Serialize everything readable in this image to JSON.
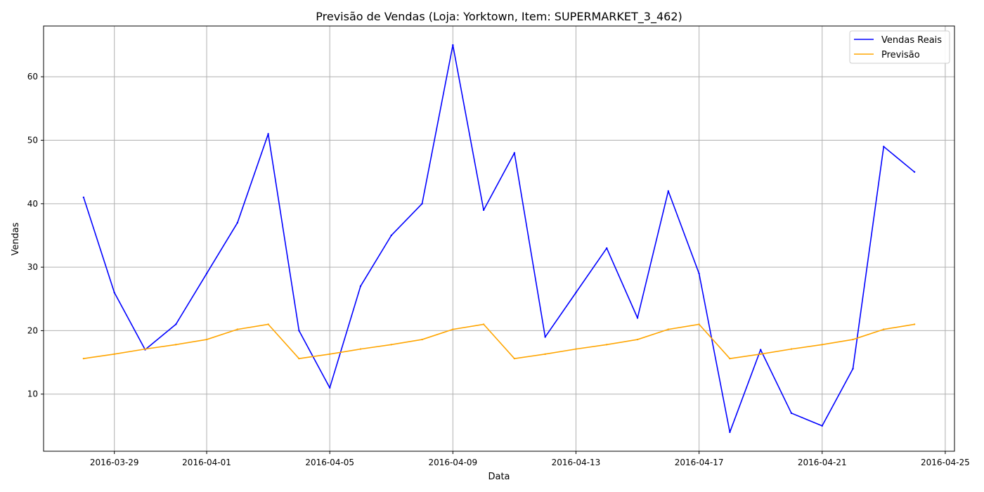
{
  "chart_data": {
    "type": "line",
    "title": "Previsão de Vendas (Loja: Yorktown, Item: SUPERMARKET_3_462)",
    "xlabel": "Data",
    "ylabel": "Vendas",
    "x": [
      "2016-03-28",
      "2016-03-29",
      "2016-03-30",
      "2016-03-31",
      "2016-04-01",
      "2016-04-02",
      "2016-04-03",
      "2016-04-04",
      "2016-04-05",
      "2016-04-06",
      "2016-04-07",
      "2016-04-08",
      "2016-04-09",
      "2016-04-10",
      "2016-04-11",
      "2016-04-12",
      "2016-04-13",
      "2016-04-14",
      "2016-04-15",
      "2016-04-16",
      "2016-04-17",
      "2016-04-18",
      "2016-04-19",
      "2016-04-20",
      "2016-04-21",
      "2016-04-22",
      "2016-04-23",
      "2016-04-24"
    ],
    "xlim": [
      "2016-03-26T16:48",
      "2016-04-25T07:12"
    ],
    "ylim": [
      1,
      68
    ],
    "x_ticks": [
      "2016-03-29",
      "2016-04-01",
      "2016-04-05",
      "2016-04-09",
      "2016-04-13",
      "2016-04-17",
      "2016-04-21",
      "2016-04-25"
    ],
    "y_ticks": [
      10,
      20,
      30,
      40,
      50,
      60
    ],
    "grid": true,
    "legend_position": "top-right",
    "series": [
      {
        "name": "Vendas Reais",
        "color": "#0000ff",
        "values": [
          41,
          26,
          17,
          21,
          29,
          37,
          51,
          20,
          11,
          27,
          35,
          40,
          65,
          39,
          48,
          19,
          26,
          33,
          22,
          42,
          29,
          4,
          17,
          7,
          5,
          14,
          49,
          45
        ]
      },
      {
        "name": "Previsão",
        "color": "#ffa500",
        "values": [
          15.6,
          16.3,
          17.1,
          17.8,
          18.6,
          20.2,
          21.0,
          15.6,
          16.3,
          17.1,
          17.8,
          18.6,
          20.2,
          21.0,
          15.6,
          16.3,
          17.1,
          17.8,
          18.6,
          20.2,
          21.0,
          15.6,
          16.3,
          17.1,
          17.8,
          18.6,
          20.2,
          21.0
        ]
      }
    ]
  }
}
